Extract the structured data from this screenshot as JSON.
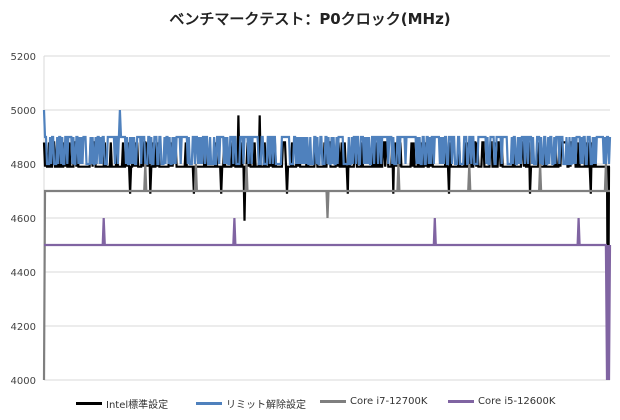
{
  "chart_data": {
    "type": "line",
    "title": "ベンチマークテスト：P0クロック(MHz)",
    "xlabel": "",
    "ylabel": "",
    "ylim": [
      4000,
      5200
    ],
    "yticks": [
      4000,
      4200,
      4400,
      4600,
      4800,
      5000,
      5200
    ],
    "grid": true,
    "legend_position": "bottom",
    "n_samples": 560,
    "series": [
      {
        "name": "Intel標準設定",
        "color": "#000000",
        "baseline": 4790,
        "values_note": "mostly 4790 MHz",
        "points": [
          [
            0,
            4880
          ],
          [
            4,
            4790
          ],
          [
            60,
            4880
          ],
          [
            62,
            4790
          ],
          [
            85,
            4690
          ],
          [
            87,
            4790
          ],
          [
            105,
            4690
          ],
          [
            107,
            4790
          ],
          [
            148,
            4690
          ],
          [
            150,
            4790
          ],
          [
            175,
            4690
          ],
          [
            177,
            4790
          ],
          [
            192,
            4980
          ],
          [
            194,
            4790
          ],
          [
            198,
            4590
          ],
          [
            200,
            4790
          ],
          [
            213,
            4980
          ],
          [
            215,
            4790
          ],
          [
            240,
            4690
          ],
          [
            242,
            4790
          ],
          [
            300,
            4690
          ],
          [
            302,
            4790
          ],
          [
            345,
            4690
          ],
          [
            347,
            4790
          ],
          [
            400,
            4690
          ],
          [
            402,
            4790
          ],
          [
            480,
            4690
          ],
          [
            482,
            4790
          ],
          [
            540,
            4690
          ],
          [
            542,
            4790
          ],
          [
            555,
            4790
          ],
          [
            557,
            4000
          ]
        ]
      },
      {
        "name": "リミット解除設定",
        "color": "#4f81bd",
        "baseline": 4900,
        "points": [
          [
            0,
            5000
          ],
          [
            2,
            4900
          ],
          [
            75,
            5000
          ],
          [
            77,
            4900
          ],
          [
            130,
            4800
          ],
          [
            132,
            4900
          ],
          [
            205,
            4800
          ],
          [
            207,
            4900
          ],
          [
            265,
            4800
          ],
          [
            267,
            4900
          ],
          [
            330,
            4800
          ],
          [
            332,
            4900
          ],
          [
            395,
            4800
          ],
          [
            397,
            4900
          ],
          [
            445,
            4800
          ],
          [
            447,
            4900
          ],
          [
            505,
            4800
          ],
          [
            507,
            4900
          ],
          [
            559,
            4900
          ]
        ]
      },
      {
        "name": "Core i7-12700K",
        "color": "#7f7f7f",
        "baseline": 4700,
        "points": [
          [
            0,
            4000
          ],
          [
            1,
            4700
          ],
          [
            100,
            4800
          ],
          [
            102,
            4700
          ],
          [
            150,
            4800
          ],
          [
            152,
            4700
          ],
          [
            200,
            4800
          ],
          [
            202,
            4700
          ],
          [
            280,
            4600
          ],
          [
            282,
            4700
          ],
          [
            350,
            4800
          ],
          [
            352,
            4700
          ],
          [
            420,
            4800
          ],
          [
            422,
            4700
          ],
          [
            490,
            4800
          ],
          [
            492,
            4700
          ],
          [
            555,
            4800
          ],
          [
            557,
            4700
          ],
          [
            559,
            4700
          ]
        ]
      },
      {
        "name": "Core i5-12600K",
        "color": "#8064a2",
        "baseline": 4500,
        "points": [
          [
            0,
            4500
          ],
          [
            58,
            4500
          ],
          [
            59,
            4600
          ],
          [
            60,
            4500
          ],
          [
            187,
            4500
          ],
          [
            188,
            4600
          ],
          [
            189,
            4500
          ],
          [
            385,
            4500
          ],
          [
            386,
            4600
          ],
          [
            387,
            4500
          ],
          [
            527,
            4500
          ],
          [
            528,
            4600
          ],
          [
            529,
            4500
          ],
          [
            554,
            4500
          ],
          [
            556,
            4000
          ],
          [
            558,
            4000
          ]
        ]
      }
    ]
  }
}
